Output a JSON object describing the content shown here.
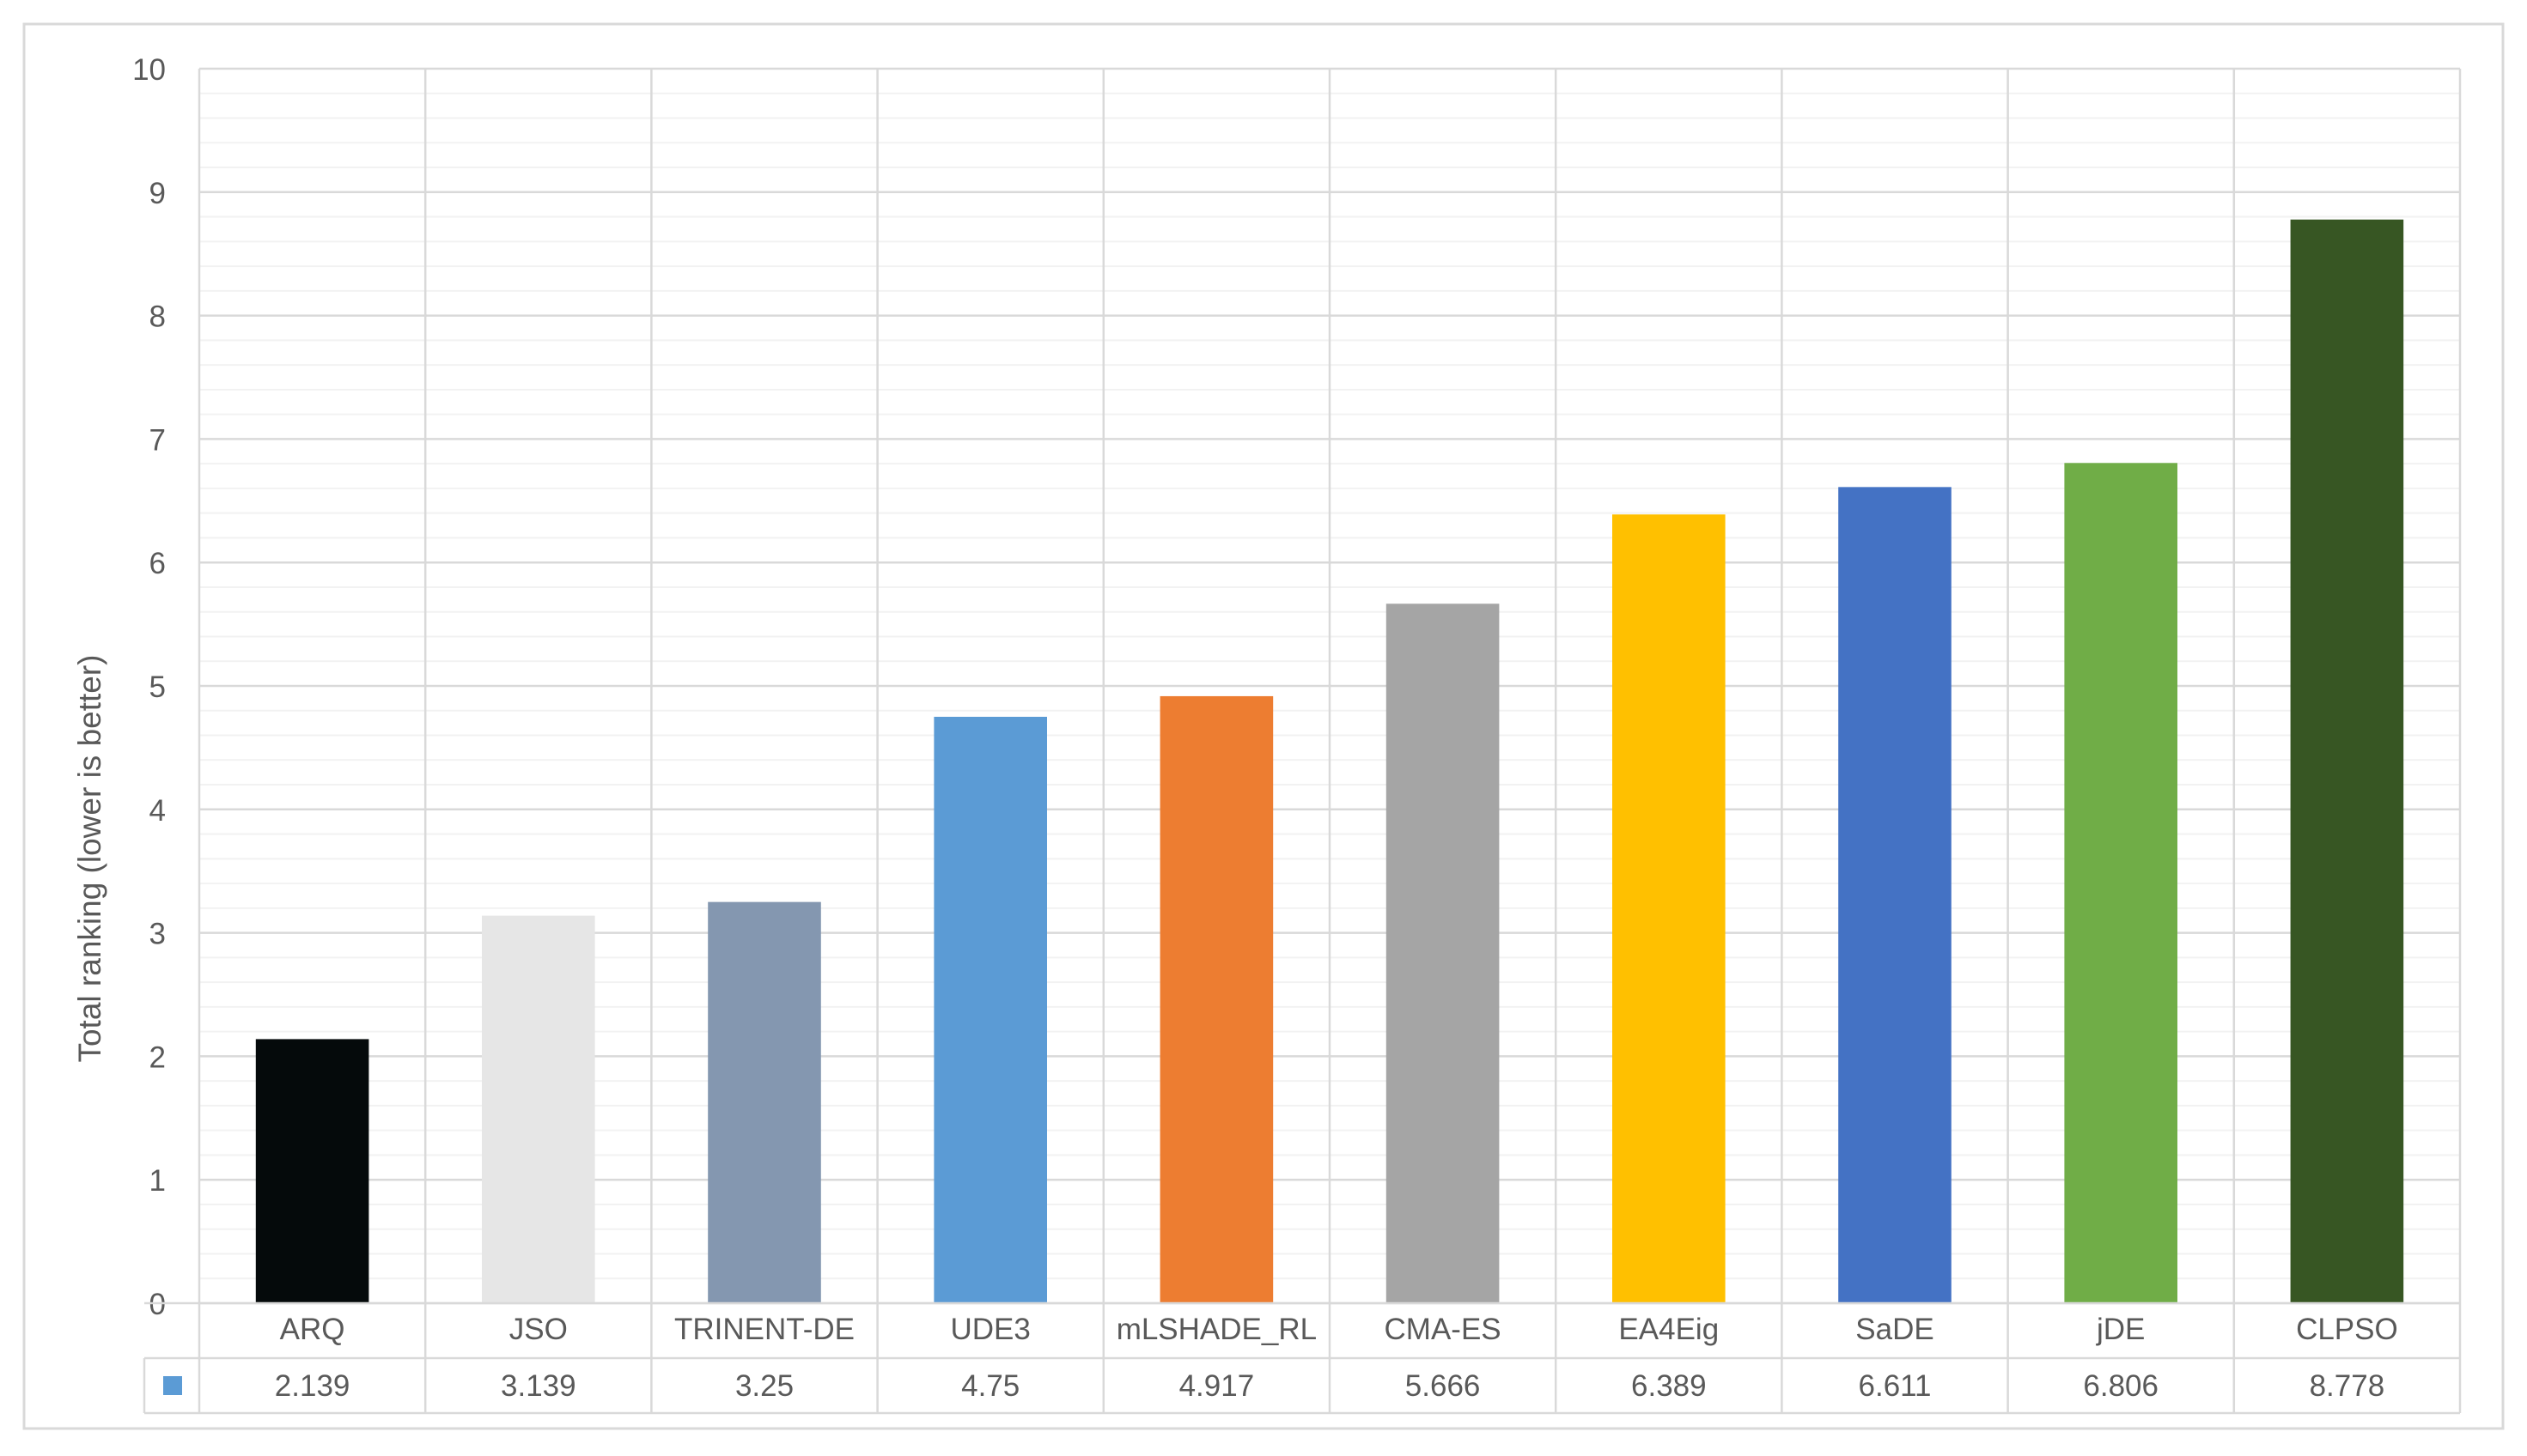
{
  "chart_data": {
    "type": "bar",
    "ylabel": "Total ranking (lower is better)",
    "ylim": [
      0,
      10
    ],
    "y_major_ticks": [
      0,
      1,
      2,
      3,
      4,
      5,
      6,
      7,
      8,
      9,
      10
    ],
    "y_minor_step": 0.2,
    "grid": true,
    "legend": "data-table",
    "data_table": true,
    "categories": [
      "ARQ",
      "JSO",
      "TRINENT-DE",
      "UDE3",
      "mLSHADE_RL",
      "CMA-ES",
      "EA4Eig",
      "SaDE",
      "jDE",
      "CLPSO"
    ],
    "value_labels": [
      "2.139",
      "3.139",
      "3.25",
      "4.75",
      "4.917",
      "5.666",
      "6.389",
      "6.611",
      "6.806",
      "8.778"
    ],
    "values": [
      2.139,
      3.139,
      3.25,
      4.75,
      4.917,
      5.666,
      6.389,
      6.611,
      6.806,
      8.778
    ],
    "bar_colors": [
      "#050a0b",
      "#e6e6e6",
      "#8497b0",
      "#5b9bd5",
      "#ed7d31",
      "#a5a5a5",
      "#ffc000",
      "#4472c4",
      "#70ad47",
      "#375623"
    ],
    "legend_key_color": "#5b9bd5"
  }
}
